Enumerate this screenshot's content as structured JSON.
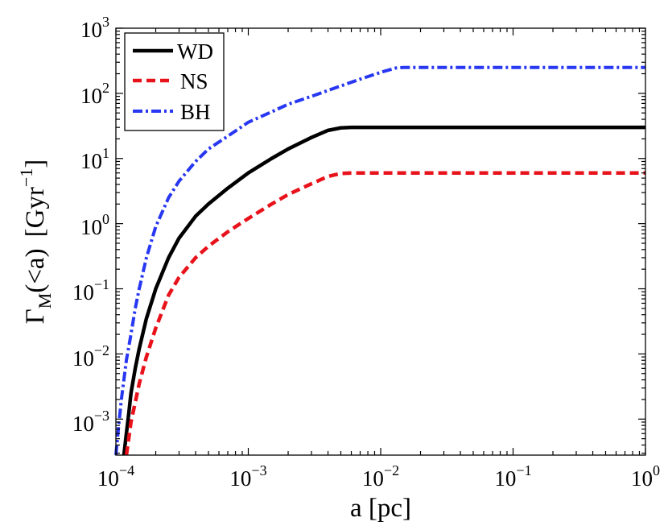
{
  "chart_data": {
    "type": "line",
    "x_scale": "log",
    "y_scale": "log",
    "xlabel": "a [pc]",
    "ylabel": {
      "gamma": "Γ",
      "subscript": "M",
      "args": "(<a)",
      "unit_open": "[Gyr",
      "unit_exp": "−1",
      "unit_close": "]"
    },
    "xlim": [
      0.0001,
      1
    ],
    "ylim": [
      0.00028,
      1000
    ],
    "x_ticks": [
      {
        "base": "10",
        "exp": "−4",
        "value": 0.0001
      },
      {
        "base": "10",
        "exp": "−3",
        "value": 0.001
      },
      {
        "base": "10",
        "exp": "−2",
        "value": 0.01
      },
      {
        "base": "10",
        "exp": "−1",
        "value": 0.1
      },
      {
        "base": "10",
        "exp": "0",
        "value": 1
      }
    ],
    "y_ticks": [
      {
        "base": "10",
        "exp": "−3",
        "value": 0.001
      },
      {
        "base": "10",
        "exp": "−2",
        "value": 0.01
      },
      {
        "base": "10",
        "exp": "−1",
        "value": 0.1
      },
      {
        "base": "10",
        "exp": "0",
        "value": 1
      },
      {
        "base": "10",
        "exp": "1",
        "value": 10
      },
      {
        "base": "10",
        "exp": "2",
        "value": 100
      },
      {
        "base": "10",
        "exp": "3",
        "value": 1000
      }
    ],
    "legend_position": "top-left",
    "series": [
      {
        "name": "WD",
        "color": "#000000",
        "style": "solid",
        "x": [
          0.000115,
          0.00012,
          0.000125,
          0.00013,
          0.00014,
          0.00015,
          0.00017,
          0.0002,
          0.00025,
          0.0003,
          0.0004,
          0.0005,
          0.0007,
          0.001,
          0.0015,
          0.002,
          0.003,
          0.004,
          0.005,
          0.006,
          0.01,
          0.1,
          1
        ],
        "y": [
          0.00028,
          0.0006,
          0.0012,
          0.0025,
          0.006,
          0.012,
          0.035,
          0.1,
          0.3,
          0.6,
          1.3,
          2.0,
          3.5,
          6.0,
          10,
          14,
          21,
          27,
          29.5,
          30,
          30,
          30,
          30
        ]
      },
      {
        "name": "NS",
        "color": "#e8121b",
        "style": "dashed",
        "x": [
          0.00012,
          0.000125,
          0.00013,
          0.00014,
          0.00015,
          0.00017,
          0.0002,
          0.00025,
          0.0003,
          0.0004,
          0.0005,
          0.0007,
          0.001,
          0.0015,
          0.002,
          0.003,
          0.004,
          0.005,
          0.006,
          0.01,
          0.1,
          1
        ],
        "y": [
          0.00028,
          0.0005,
          0.0009,
          0.0018,
          0.0035,
          0.009,
          0.025,
          0.08,
          0.15,
          0.3,
          0.45,
          0.75,
          1.2,
          2.0,
          2.8,
          4.1,
          5.3,
          5.9,
          6.0,
          6.0,
          6.0,
          6.0
        ]
      },
      {
        "name": "BH",
        "color": "#2737f2",
        "style": "dashdot",
        "x": [
          0.0001,
          0.000105,
          0.00011,
          0.00012,
          0.00013,
          0.00014,
          0.00015,
          0.00017,
          0.0002,
          0.00025,
          0.0003,
          0.0004,
          0.0005,
          0.0007,
          0.001,
          0.0015,
          0.002,
          0.003,
          0.005,
          0.007,
          0.01,
          0.013,
          0.015,
          0.02,
          0.1,
          1
        ],
        "y": [
          0.00028,
          0.0008,
          0.002,
          0.008,
          0.02,
          0.05,
          0.1,
          0.3,
          0.9,
          2.5,
          4.5,
          9,
          14,
          22,
          36,
          52,
          68,
          90,
          130,
          165,
          210,
          245,
          250,
          250,
          250,
          250
        ]
      }
    ]
  }
}
